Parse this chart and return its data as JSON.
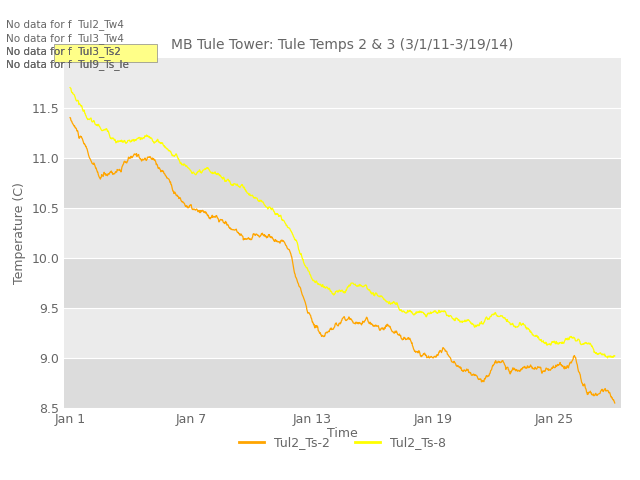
{
  "title": "MB Tule Tower: Tule Temps 2 & 3 (3/1/11-3/19/14)",
  "xlabel": "Time",
  "ylabel": "Temperature (C)",
  "ylim": [
    8.5,
    12.0
  ],
  "yticks": [
    8.5,
    9.0,
    9.5,
    10.0,
    10.5,
    11.0,
    11.5
  ],
  "xtick_labels": [
    "Jan 1",
    "Jan 7",
    "Jan 13",
    "Jan 19",
    "Jan 25"
  ],
  "xtick_positions": [
    0,
    6,
    12,
    18,
    24
  ],
  "series1_color": "#FFA500",
  "series2_color": "#FFFF00",
  "series1_label": "Tul2_Ts-2",
  "series2_label": "Tul2_Ts-8",
  "background_color": "#ffffff",
  "plot_bg_color": "#ebebeb",
  "stripe_color_dark": "#dcdcdc",
  "stripe_color_light": "#ebebeb",
  "no_data_texts": [
    "No data for f  Tul2_Tw4",
    "No data for f  Tul3_Tw4",
    "No data for f  Tul3_Ts2",
    "No data for f  Tul9_Ts_le"
  ],
  "no_data_box_color": "#FFFF88",
  "text_color": "#666666",
  "title_fontsize": 10,
  "axis_fontsize": 9,
  "tick_fontsize": 9
}
